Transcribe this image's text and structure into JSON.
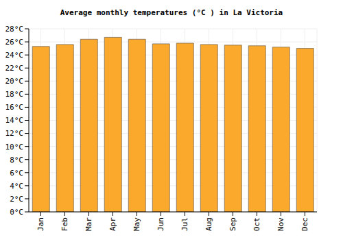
{
  "chart_data": {
    "type": "bar",
    "title": "Average monthly temperatures (°C ) in La Victoria",
    "categories": [
      "Jan",
      "Feb",
      "Mar",
      "Apr",
      "May",
      "Jun",
      "Jul",
      "Aug",
      "Sep",
      "Oct",
      "Nov",
      "Dec"
    ],
    "values": [
      25.3,
      25.6,
      26.4,
      26.7,
      26.4,
      25.7,
      25.8,
      25.6,
      25.5,
      25.4,
      25.2,
      25.0
    ],
    "color": "#fba92c",
    "ylim": [
      0,
      28
    ],
    "yticks": [
      {
        "value": 0,
        "label": "0°C"
      },
      {
        "value": 2,
        "label": "2°C"
      },
      {
        "value": 4,
        "label": "4°C"
      },
      {
        "value": 6,
        "label": "6°C"
      },
      {
        "value": 8,
        "label": "8°C"
      },
      {
        "value": 10,
        "label": "10°C"
      },
      {
        "value": 12,
        "label": "12°C"
      },
      {
        "value": 14,
        "label": "14°C"
      },
      {
        "value": 16,
        "label": "16°C"
      },
      {
        "value": 18,
        "label": "18°C"
      },
      {
        "value": 20,
        "label": "20°C"
      },
      {
        "value": 22,
        "label": "22°C"
      },
      {
        "value": 24,
        "label": "24°C"
      },
      {
        "value": 26,
        "label": "26°C"
      },
      {
        "value": 28,
        "label": "28°C"
      }
    ],
    "grid": true
  }
}
